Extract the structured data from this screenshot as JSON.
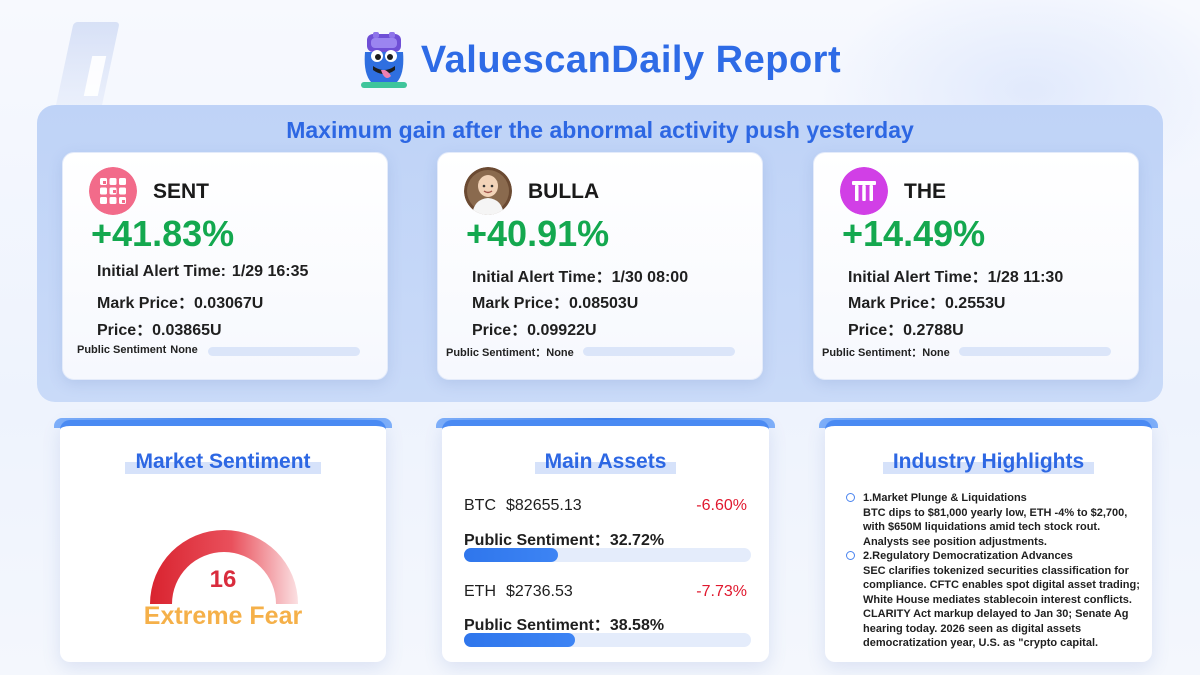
{
  "header": {
    "title": "ValuescanDaily Report"
  },
  "top_panel": {
    "heading": "Maximum gain after the abnormal activity push yesterday",
    "cards": [
      {
        "name": "SENT",
        "gain": "+41.83%",
        "alert_label": "Initial Alert Time:",
        "alert_value": "1/29 16:35",
        "mark_label": "Mark Price：",
        "mark_value": "0.03067U",
        "price_label": "Price：",
        "price_value": "0.03865U",
        "sentiment_label": "Public Sentiment",
        "sentiment_value": "None",
        "avatar_icon": "sent-logo-icon"
      },
      {
        "name": "BULLA",
        "gain": "+40.91%",
        "alert_label": "Initial Alert Time：",
        "alert_value": "1/30 08:00",
        "mark_label": "Mark Price：",
        "mark_value": "0.08503U",
        "price_label": "Price：",
        "price_value": "0.09922U",
        "sentiment_label": "Public Sentiment：",
        "sentiment_value": "None",
        "avatar_icon": "bulla-avatar-icon"
      },
      {
        "name": "THE",
        "gain": "+14.49%",
        "alert_label": "Initial Alert Time：",
        "alert_value": "1/28 11:30",
        "mark_label": "Mark Price：",
        "mark_value": "0.2553U",
        "price_label": "Price：",
        "price_value": "0.2788U",
        "sentiment_label": "Public Sentiment：",
        "sentiment_value": "None",
        "avatar_icon": "the-logo-icon"
      }
    ]
  },
  "market_sentiment": {
    "title": "Market Sentiment",
    "value": "16",
    "label": "Extreme Fear",
    "gauge_fraction": 0.16,
    "colors": {
      "gauge_start": "#d9232f",
      "gauge_end": "#fbe0e2",
      "value": "#d92c3d",
      "label": "#f5b049"
    }
  },
  "main_assets": {
    "title": "Main Assets",
    "assets": [
      {
        "symbol": "BTC",
        "price": "$82655.13",
        "change": "-6.60%",
        "sentiment_label": "Public Sentiment：",
        "sentiment_value": "32.72%",
        "sentiment_fraction": 0.3272
      },
      {
        "symbol": "ETH",
        "price": "$2736.53",
        "change": "-7.73%",
        "sentiment_label": "Public Sentiment：",
        "sentiment_value": "38.58%",
        "sentiment_fraction": 0.3858
      }
    ]
  },
  "industry_highlights": {
    "title": "Industry Highlights",
    "items": [
      {
        "heading": "1.Market Plunge & Liquidations",
        "lines": [
          "BTC dips to $81,000 yearly low, ETH -4% to $2,700,",
          "with $650M liquidations amid tech stock rout.",
          "Analysts see position adjustments."
        ]
      },
      {
        "heading": "2.Regulatory Democratization Advances",
        "lines": [
          "SEC clarifies tokenized securities classification for",
          "compliance. CFTC enables spot digital asset trading;",
          "White House mediates stablecoin interest conflicts.",
          "CLARITY Act markup delayed to Jan 30; Senate Ag",
          "hearing today. 2026 seen as digital assets",
          "democratization year, U.S. as \"crypto capital."
        ]
      }
    ]
  },
  "colors": {
    "accent": "#2e6be6",
    "gain_green": "#14a84f",
    "loss_red": "#e0182e",
    "panel_bg": "#c4d6f8"
  }
}
